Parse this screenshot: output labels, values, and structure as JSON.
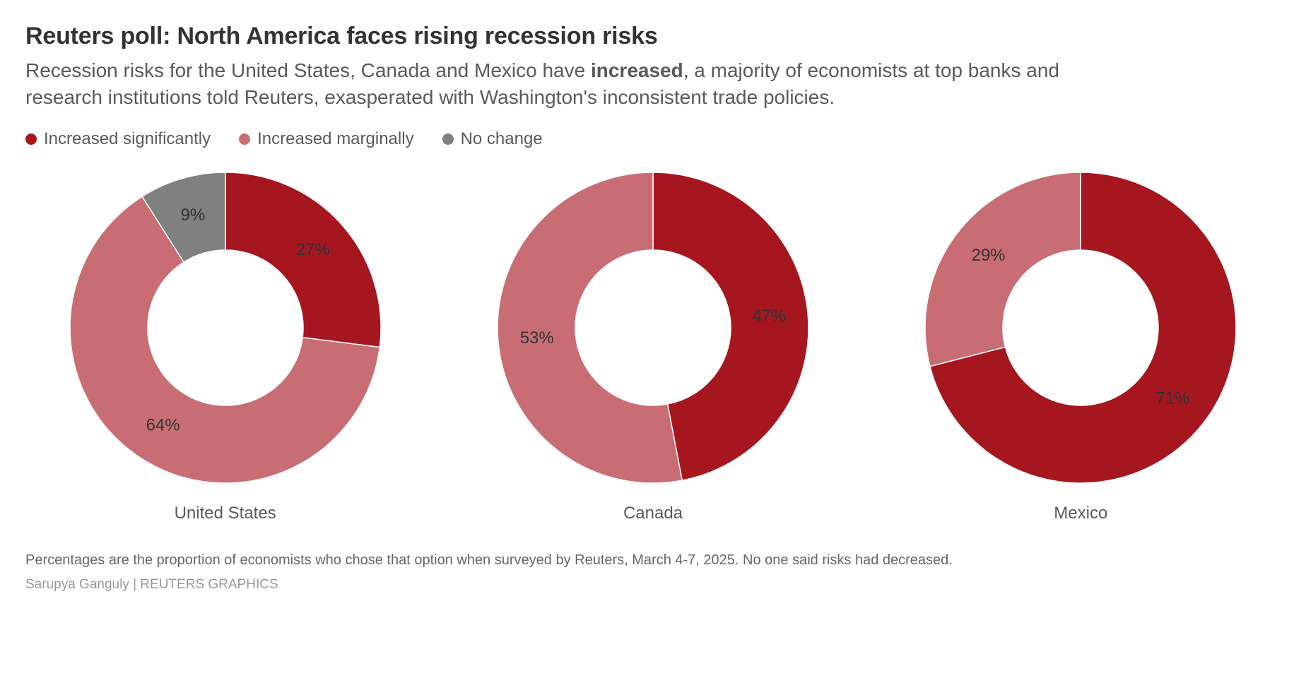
{
  "title": "Reuters poll: North America faces rising recession risks",
  "subtitle_pre": "Recession risks for the United States, Canada and Mexico have ",
  "subtitle_bold": "increased",
  "subtitle_post": ", a majority of economists at top banks and research institutions told Reuters, exasperated with Washington's inconsistent trade policies.",
  "legend": [
    {
      "label": "Increased significantly",
      "color": "#a6161f"
    },
    {
      "label": "Increased marginally",
      "color": "#c96d74"
    },
    {
      "label": "No change",
      "color": "#808080"
    }
  ],
  "chart_style": {
    "type": "donut",
    "outer_r": 220,
    "inner_r": 110,
    "svg_size": 470,
    "start_angle_deg": 0,
    "direction": "clockwise",
    "slice_stroke": "#ffffff",
    "slice_stroke_width": 1.5,
    "label_fontsize": 24,
    "label_color": "#333333",
    "caption_fontsize": 24,
    "caption_color": "#5a5a5a",
    "background": "#ffffff",
    "label_radius_factor": 0.74
  },
  "charts": [
    {
      "name": "United States",
      "slices": [
        {
          "key": "sig",
          "value": 27,
          "label": "27%",
          "color": "#a6161f"
        },
        {
          "key": "marg",
          "value": 64,
          "label": "64%",
          "color": "#c96d74"
        },
        {
          "key": "none",
          "value": 9,
          "label": "9%",
          "color": "#808080"
        }
      ]
    },
    {
      "name": "Canada",
      "slices": [
        {
          "key": "sig",
          "value": 47,
          "label": "47%",
          "color": "#a6161f"
        },
        {
          "key": "marg",
          "value": 53,
          "label": "53%",
          "color": "#c96d74"
        }
      ]
    },
    {
      "name": "Mexico",
      "slices": [
        {
          "key": "sig",
          "value": 71,
          "label": "71%",
          "color": "#a6161f"
        },
        {
          "key": "marg",
          "value": 29,
          "label": "29%",
          "color": "#c96d74"
        }
      ]
    }
  ],
  "footnote": "Percentages are the proportion of economists who chose that option when surveyed by Reuters, March 4-7, 2025. No one said risks had decreased.",
  "credit": "Sarupya Ganguly | REUTERS GRAPHICS"
}
